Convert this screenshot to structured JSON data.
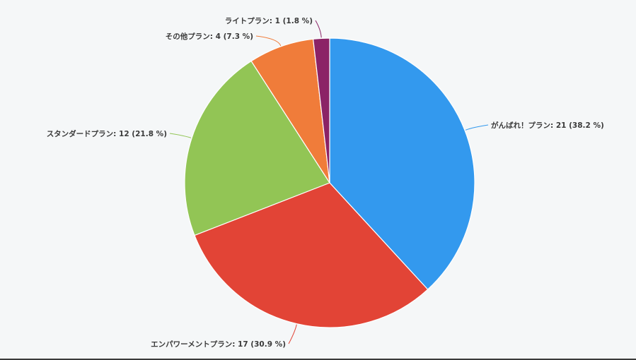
{
  "chart_data": {
    "type": "pie",
    "start_angle_deg": 0,
    "direction": "clockwise",
    "slices": [
      {
        "name": "がんばれ！プラン",
        "value": 21,
        "percent": "38.2 %",
        "color": "#3399ee"
      },
      {
        "name": "エンパワーメントプラン",
        "value": 17,
        "percent": "30.9 %",
        "color": "#e24436"
      },
      {
        "name": "スタンダードプラン",
        "value": 12,
        "percent": "21.8 %",
        "color": "#92c555"
      },
      {
        "name": "その他プラン",
        "value": 4,
        "percent": "7.3 %",
        "color": "#f07c3a"
      },
      {
        "name": "ライトプラン",
        "value": 1,
        "percent": "1.8 %",
        "color": "#8b2366"
      }
    ],
    "labels": [
      "がんばれ！プラン: 21 (38.2 %)",
      "エンパワーメントプラン: 17 (30.9 %)",
      "スタンダードプラン: 12 (21.8 %)",
      "その他プラン: 4 (7.3 %)",
      "ライトプラン: 1 (1.8 %)"
    ]
  }
}
